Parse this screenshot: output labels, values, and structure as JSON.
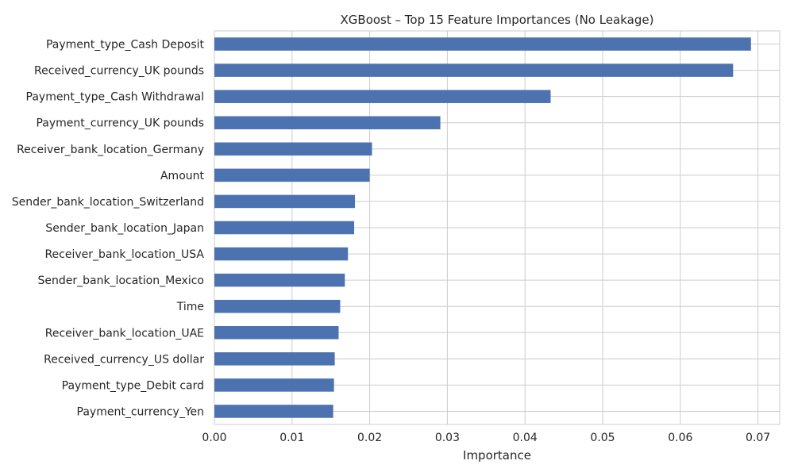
{
  "chart_data": {
    "type": "bar",
    "orientation": "horizontal",
    "title": "XGBoost – Top 15 Feature Importances (No Leakage)",
    "xlabel": "Importance",
    "ylabel": "",
    "xlim": [
      0,
      0.0728
    ],
    "xticks": [
      "0.00",
      "0.01",
      "0.02",
      "0.03",
      "0.04",
      "0.05",
      "0.06",
      "0.07"
    ],
    "grid": true,
    "bar_color": "#4c72b0",
    "categories": [
      "Payment_type_Cash Deposit",
      "Received_currency_UK pounds",
      "Payment_type_Cash Withdrawal",
      "Payment_currency_UK pounds",
      "Receiver_bank_location_Germany",
      "Amount",
      "Sender_bank_location_Switzerland",
      "Sender_bank_location_Japan",
      "Receiver_bank_location_USA",
      "Sender_bank_location_Mexico",
      "Time",
      "Receiver_bank_location_UAE",
      "Received_currency_US dollar",
      "Payment_type_Debit card",
      "Payment_currency_Yen"
    ],
    "values": [
      0.0691,
      0.0668,
      0.0433,
      0.0291,
      0.0203,
      0.02,
      0.0181,
      0.018,
      0.0172,
      0.0168,
      0.0162,
      0.016,
      0.0155,
      0.0154,
      0.0153
    ]
  }
}
